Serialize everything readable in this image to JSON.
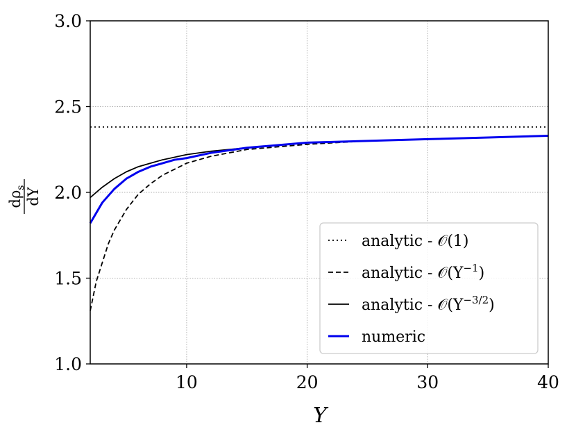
{
  "chart_data": {
    "type": "line",
    "title": "",
    "xlabel": "Υ",
    "ylabel": "dρs / dΥ",
    "ylabel_parts": {
      "num": "dρ",
      "num_sub": "s",
      "den": "dΥ"
    },
    "xlim": [
      2,
      40
    ],
    "ylim": [
      1.0,
      3.0
    ],
    "xticks": [
      10,
      20,
      30,
      40
    ],
    "xtick_labels": [
      "10",
      "20",
      "30",
      "40"
    ],
    "yticks": [
      1.0,
      1.5,
      2.0,
      2.5,
      3.0
    ],
    "ytick_labels": [
      "1.0",
      "1.5",
      "2.0",
      "2.5",
      "3.0"
    ],
    "grid": true,
    "legend_position": "lower-right",
    "legend_items": [
      {
        "text": "analytic - 𝒪(1)",
        "base": "analytic - 𝒪(1)",
        "sup": "",
        "tail": ""
      },
      {
        "text": "analytic - 𝒪(Υ⁻¹)",
        "base": "analytic - 𝒪(Υ",
        "sup": "−1",
        "tail": ")"
      },
      {
        "text": "analytic - 𝒪(Υ⁻³ᐟ²)",
        "base": "analytic - 𝒪(Υ",
        "sup": "−3/2",
        "tail": ")"
      },
      {
        "text": "numeric",
        "base": "numeric",
        "sup": "",
        "tail": ""
      }
    ],
    "series": [
      {
        "name": "analytic - 𝒪(1)",
        "style": "dotted",
        "color": "#000000",
        "x": [
          2,
          40
        ],
        "y": [
          2.381,
          2.381
        ]
      },
      {
        "name": "analytic - 𝒪(Υ⁻¹)",
        "style": "dashed",
        "color": "#000000",
        "x": [
          2.0,
          2.5,
          3,
          3.5,
          4,
          5,
          6,
          7,
          8,
          10,
          12,
          15,
          20,
          25,
          30,
          35,
          40
        ],
        "y": [
          1.31,
          1.48,
          1.59,
          1.7,
          1.78,
          1.9,
          1.99,
          2.05,
          2.1,
          2.17,
          2.21,
          2.25,
          2.28,
          2.3,
          2.31,
          2.32,
          2.33
        ]
      },
      {
        "name": "analytic - 𝒪(Υ⁻³ᐟ²)",
        "style": "solid",
        "color": "#000000",
        "x": [
          2,
          3,
          4,
          5,
          6,
          7,
          8,
          10,
          12,
          15,
          20,
          25,
          30,
          35,
          40
        ],
        "y": [
          1.97,
          2.03,
          2.08,
          2.12,
          2.15,
          2.17,
          2.19,
          2.22,
          2.24,
          2.26,
          2.29,
          2.3,
          2.31,
          2.32,
          2.33
        ]
      },
      {
        "name": "numeric",
        "style": "solid",
        "color": "#0000ee",
        "x": [
          2,
          3,
          4,
          5,
          6,
          7,
          8,
          9,
          10,
          12,
          15,
          20,
          25,
          30,
          35,
          40
        ],
        "y": [
          1.82,
          1.94,
          2.02,
          2.08,
          2.12,
          2.15,
          2.17,
          2.19,
          2.2,
          2.23,
          2.26,
          2.29,
          2.3,
          2.31,
          2.32,
          2.33
        ]
      }
    ]
  }
}
